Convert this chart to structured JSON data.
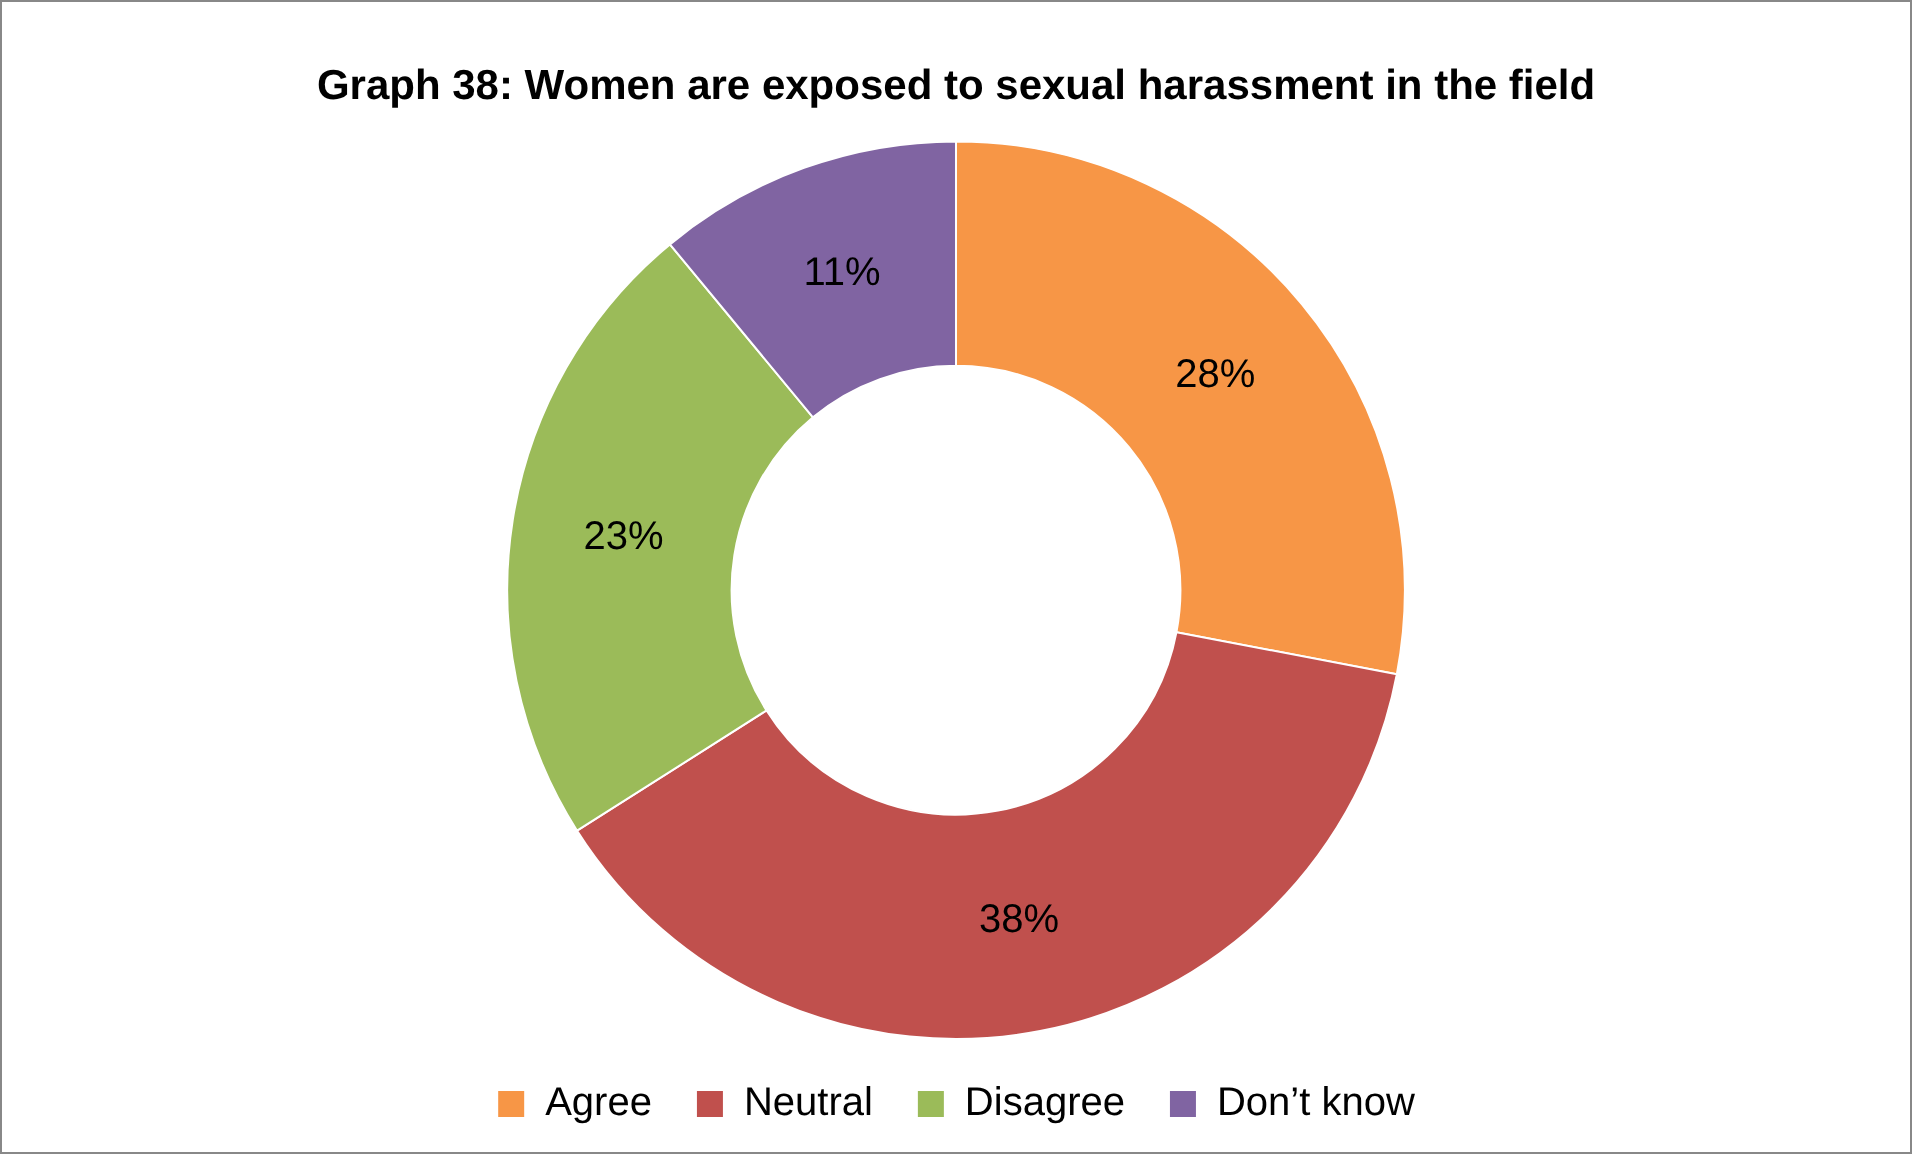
{
  "chart_data": {
    "type": "donut",
    "title": "Graph 38: Women are exposed to sexual harassment in the field",
    "categories": [
      "Agree",
      "Neutral",
      "Disagree",
      "Don’t know"
    ],
    "values": [
      28,
      38,
      23,
      11
    ],
    "colors": [
      "#f79646",
      "#c0504d",
      "#9bbb59",
      "#8064a2"
    ],
    "value_labels": [
      "28%",
      "38%",
      "23%",
      "11%"
    ],
    "legend": "bottom"
  }
}
